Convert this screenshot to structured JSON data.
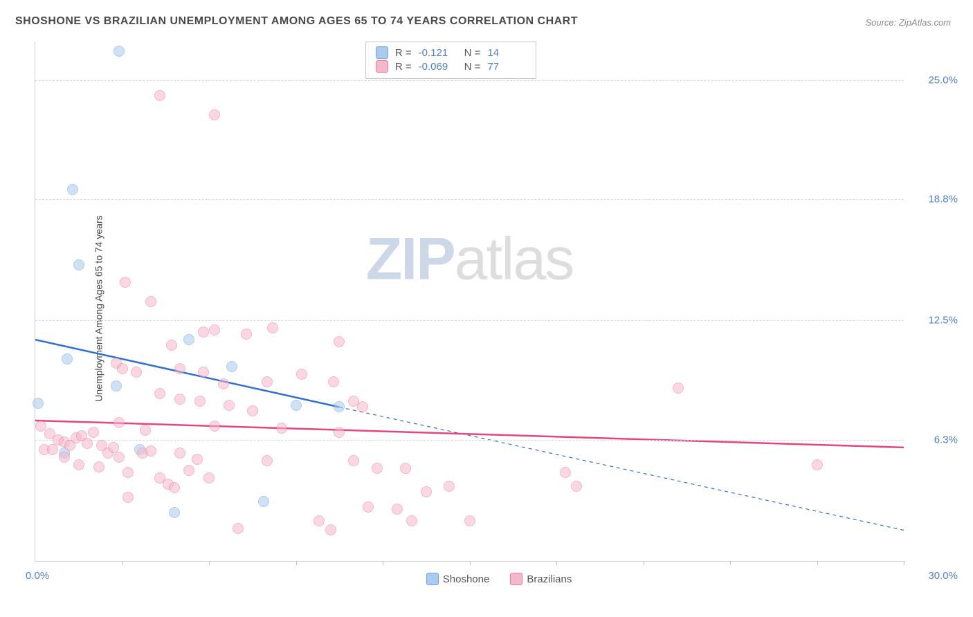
{
  "title": "SHOSHONE VS BRAZILIAN UNEMPLOYMENT AMONG AGES 65 TO 74 YEARS CORRELATION CHART",
  "source": "Source: ZipAtlas.com",
  "ylabel": "Unemployment Among Ages 65 to 74 years",
  "watermark": {
    "part1": "ZIP",
    "part2": "atlas"
  },
  "chart": {
    "type": "scatter",
    "background_color": "#ffffff",
    "grid_color": "#d8d8d8",
    "axis_text_color": "#4f7fc9",
    "xmin": 0.0,
    "xmax": 30.0,
    "ymin": 0.0,
    "ymax": 27.0,
    "y_ticks": [
      {
        "value": 6.3,
        "label": "6.3%"
      },
      {
        "value": 12.5,
        "label": "12.5%"
      },
      {
        "value": 18.8,
        "label": "18.8%"
      },
      {
        "value": 25.0,
        "label": "25.0%"
      }
    ],
    "x_tick_positions": [
      3.0,
      6.0,
      9.0,
      12.0,
      15.0,
      18.0,
      21.0,
      24.0,
      27.0,
      30.0
    ],
    "x_origin_label": "0.0%",
    "x_end_label": "30.0%",
    "point_radius": 8,
    "point_opacity": 0.55,
    "series": [
      {
        "name": "Shoshone",
        "color": "#6fa3e0",
        "fill": "#a9cbee",
        "R": "-0.121",
        "N": "14",
        "regression": {
          "x1": 0.0,
          "y1": 11.5,
          "x2": 10.5,
          "y2": 8.0,
          "dash_from_x": 10.5,
          "dash_to_x": 30.0,
          "dash_to_y": 1.6,
          "stroke": "#2f6fd0",
          "stroke_width": 2.5
        },
        "data": [
          {
            "x": 2.9,
            "y": 26.5
          },
          {
            "x": 1.3,
            "y": 19.3
          },
          {
            "x": 1.5,
            "y": 15.4
          },
          {
            "x": 5.3,
            "y": 11.5
          },
          {
            "x": 1.1,
            "y": 10.5
          },
          {
            "x": 6.8,
            "y": 10.1
          },
          {
            "x": 2.8,
            "y": 9.1
          },
          {
            "x": 0.1,
            "y": 8.2
          },
          {
            "x": 9.0,
            "y": 8.1
          },
          {
            "x": 10.5,
            "y": 8.0
          },
          {
            "x": 3.6,
            "y": 5.8
          },
          {
            "x": 1.0,
            "y": 5.6
          },
          {
            "x": 4.8,
            "y": 2.5
          },
          {
            "x": 7.9,
            "y": 3.1
          }
        ]
      },
      {
        "name": "Brazilians",
        "color": "#e87ea3",
        "fill": "#f6b7ca",
        "R": "-0.069",
        "N": "77",
        "regression": {
          "x1": 0.0,
          "y1": 7.3,
          "x2": 30.0,
          "y2": 5.9,
          "stroke": "#e6447c",
          "stroke_width": 2.5
        },
        "data": [
          {
            "x": 4.3,
            "y": 24.2
          },
          {
            "x": 6.2,
            "y": 23.2
          },
          {
            "x": 3.1,
            "y": 14.5
          },
          {
            "x": 4.0,
            "y": 13.5
          },
          {
            "x": 6.2,
            "y": 12.0
          },
          {
            "x": 5.8,
            "y": 11.9
          },
          {
            "x": 7.3,
            "y": 11.8
          },
          {
            "x": 8.2,
            "y": 12.1
          },
          {
            "x": 10.5,
            "y": 11.4
          },
          {
            "x": 4.7,
            "y": 11.2
          },
          {
            "x": 2.8,
            "y": 10.3
          },
          {
            "x": 3.5,
            "y": 9.8
          },
          {
            "x": 5.0,
            "y": 10.0
          },
          {
            "x": 5.8,
            "y": 9.8
          },
          {
            "x": 6.5,
            "y": 9.2
          },
          {
            "x": 8.0,
            "y": 9.3
          },
          {
            "x": 9.2,
            "y": 9.7
          },
          {
            "x": 10.3,
            "y": 9.3
          },
          {
            "x": 11.0,
            "y": 8.3
          },
          {
            "x": 11.3,
            "y": 8.0
          },
          {
            "x": 22.2,
            "y": 9.0
          },
          {
            "x": 4.3,
            "y": 8.7
          },
          {
            "x": 5.0,
            "y": 8.4
          },
          {
            "x": 5.7,
            "y": 8.3
          },
          {
            "x": 6.7,
            "y": 8.1
          },
          {
            "x": 7.5,
            "y": 7.8
          },
          {
            "x": 0.2,
            "y": 7.0
          },
          {
            "x": 0.5,
            "y": 6.6
          },
          {
            "x": 0.8,
            "y": 6.3
          },
          {
            "x": 1.0,
            "y": 6.2
          },
          {
            "x": 1.2,
            "y": 6.0
          },
          {
            "x": 1.4,
            "y": 6.4
          },
          {
            "x": 1.6,
            "y": 6.5
          },
          {
            "x": 1.8,
            "y": 6.1
          },
          {
            "x": 2.0,
            "y": 6.7
          },
          {
            "x": 2.3,
            "y": 6.0
          },
          {
            "x": 2.5,
            "y": 5.6
          },
          {
            "x": 2.7,
            "y": 5.9
          },
          {
            "x": 2.9,
            "y": 7.2
          },
          {
            "x": 3.0,
            "y": 10.0
          },
          {
            "x": 0.3,
            "y": 5.8
          },
          {
            "x": 0.6,
            "y": 5.8
          },
          {
            "x": 1.0,
            "y": 5.4
          },
          {
            "x": 1.5,
            "y": 5.0
          },
          {
            "x": 2.2,
            "y": 4.9
          },
          {
            "x": 2.9,
            "y": 5.4
          },
          {
            "x": 3.2,
            "y": 4.6
          },
          {
            "x": 3.7,
            "y": 5.6
          },
          {
            "x": 4.0,
            "y": 5.7
          },
          {
            "x": 4.3,
            "y": 4.3
          },
          {
            "x": 4.6,
            "y": 4.0
          },
          {
            "x": 4.8,
            "y": 3.8
          },
          {
            "x": 5.0,
            "y": 5.6
          },
          {
            "x": 5.3,
            "y": 4.7
          },
          {
            "x": 5.6,
            "y": 5.3
          },
          {
            "x": 6.0,
            "y": 4.3
          },
          {
            "x": 6.2,
            "y": 7.0
          },
          {
            "x": 7.0,
            "y": 1.7
          },
          {
            "x": 8.0,
            "y": 5.2
          },
          {
            "x": 8.5,
            "y": 6.9
          },
          {
            "x": 3.2,
            "y": 3.3
          },
          {
            "x": 9.8,
            "y": 2.1
          },
          {
            "x": 10.2,
            "y": 1.6
          },
          {
            "x": 10.5,
            "y": 6.7
          },
          {
            "x": 11.0,
            "y": 5.2
          },
          {
            "x": 11.5,
            "y": 2.8
          },
          {
            "x": 11.8,
            "y": 4.8
          },
          {
            "x": 12.5,
            "y": 2.7
          },
          {
            "x": 12.8,
            "y": 4.8
          },
          {
            "x": 13.0,
            "y": 2.1
          },
          {
            "x": 13.5,
            "y": 3.6
          },
          {
            "x": 14.3,
            "y": 3.9
          },
          {
            "x": 15.0,
            "y": 2.1
          },
          {
            "x": 18.7,
            "y": 3.9
          },
          {
            "x": 18.3,
            "y": 4.6
          },
          {
            "x": 27.0,
            "y": 5.0
          },
          {
            "x": 3.8,
            "y": 6.8
          }
        ]
      }
    ]
  },
  "legend": {
    "r_label": "R =",
    "n_label": "N ="
  }
}
